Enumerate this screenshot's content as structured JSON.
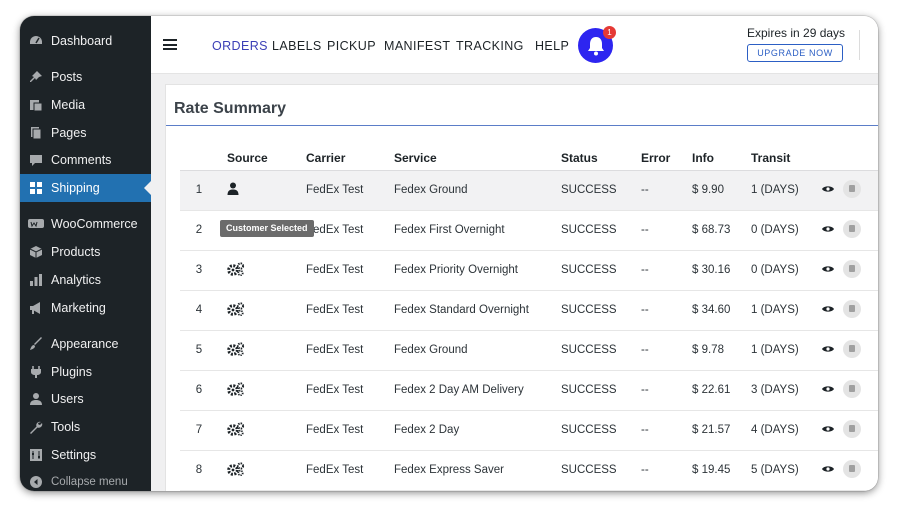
{
  "sidebar": {
    "items": [
      {
        "label": "Dashboard",
        "icon": "dashboard-icon"
      },
      {
        "label": "Posts",
        "icon": "pin-icon"
      },
      {
        "label": "Media",
        "icon": "media-icon"
      },
      {
        "label": "Pages",
        "icon": "pages-icon"
      },
      {
        "label": "Comments",
        "icon": "comment-icon"
      },
      {
        "label": "Shipping",
        "icon": "grid-icon"
      },
      {
        "label": "WooCommerce",
        "icon": "woo-icon"
      },
      {
        "label": "Products",
        "icon": "box-icon"
      },
      {
        "label": "Analytics",
        "icon": "bar-chart-icon"
      },
      {
        "label": "Marketing",
        "icon": "megaphone-icon"
      },
      {
        "label": "Appearance",
        "icon": "brush-icon"
      },
      {
        "label": "Plugins",
        "icon": "plug-icon"
      },
      {
        "label": "Users",
        "icon": "user-icon"
      },
      {
        "label": "Tools",
        "icon": "wrench-icon"
      },
      {
        "label": "Settings",
        "icon": "settings-icon"
      },
      {
        "label": "Collapse menu",
        "icon": "collapse-icon"
      }
    ],
    "active": "Shipping"
  },
  "topnav": {
    "links": [
      "ORDERS",
      "LABELS",
      "PICKUP",
      "MANIFEST",
      "TRACKING",
      "HELP"
    ],
    "active": "ORDERS",
    "notification_count": "1",
    "expires": "Expires in 29 days",
    "upgrade": "UPGRADE NOW"
  },
  "panel": {
    "title": "Rate Summary",
    "columns": [
      "",
      "Source",
      "Carrier",
      "Service",
      "Status",
      "Error",
      "Info",
      "Transit",
      "",
      ""
    ],
    "tooltip": "Customer Selected",
    "rows": [
      {
        "num": "1",
        "source": "customer",
        "carrier": "FedEx Test",
        "service": "Fedex Ground",
        "status": "SUCCESS",
        "error": "--",
        "info": "$ 9.90",
        "transit": "1 (DAYS)"
      },
      {
        "num": "2",
        "source": "system",
        "carrier": "FedEx Test",
        "service": "Fedex First Overnight",
        "status": "SUCCESS",
        "error": "--",
        "info": "$ 68.73",
        "transit": "0 (DAYS)"
      },
      {
        "num": "3",
        "source": "system",
        "carrier": "FedEx Test",
        "service": "Fedex Priority Overnight",
        "status": "SUCCESS",
        "error": "--",
        "info": "$ 30.16",
        "transit": "0 (DAYS)"
      },
      {
        "num": "4",
        "source": "system",
        "carrier": "FedEx Test",
        "service": "Fedex Standard Overnight",
        "status": "SUCCESS",
        "error": "--",
        "info": "$ 34.60",
        "transit": "1 (DAYS)"
      },
      {
        "num": "5",
        "source": "system",
        "carrier": "FedEx Test",
        "service": "Fedex Ground",
        "status": "SUCCESS",
        "error": "--",
        "info": "$ 9.78",
        "transit": "1 (DAYS)"
      },
      {
        "num": "6",
        "source": "system",
        "carrier": "FedEx Test",
        "service": "Fedex 2 Day AM Delivery",
        "status": "SUCCESS",
        "error": "--",
        "info": "$ 22.61",
        "transit": "3 (DAYS)"
      },
      {
        "num": "7",
        "source": "system",
        "carrier": "FedEx Test",
        "service": "Fedex 2 Day",
        "status": "SUCCESS",
        "error": "--",
        "info": "$ 21.57",
        "transit": "4 (DAYS)"
      },
      {
        "num": "8",
        "source": "system",
        "carrier": "FedEx Test",
        "service": "Fedex Express Saver",
        "status": "SUCCESS",
        "error": "--",
        "info": "$ 19.45",
        "transit": "5 (DAYS)"
      }
    ]
  },
  "colors": {
    "sidebar": "#1d2327",
    "active": "#2271b1",
    "bell": "#2d25f0",
    "nav_active": "#3b3fb6"
  }
}
